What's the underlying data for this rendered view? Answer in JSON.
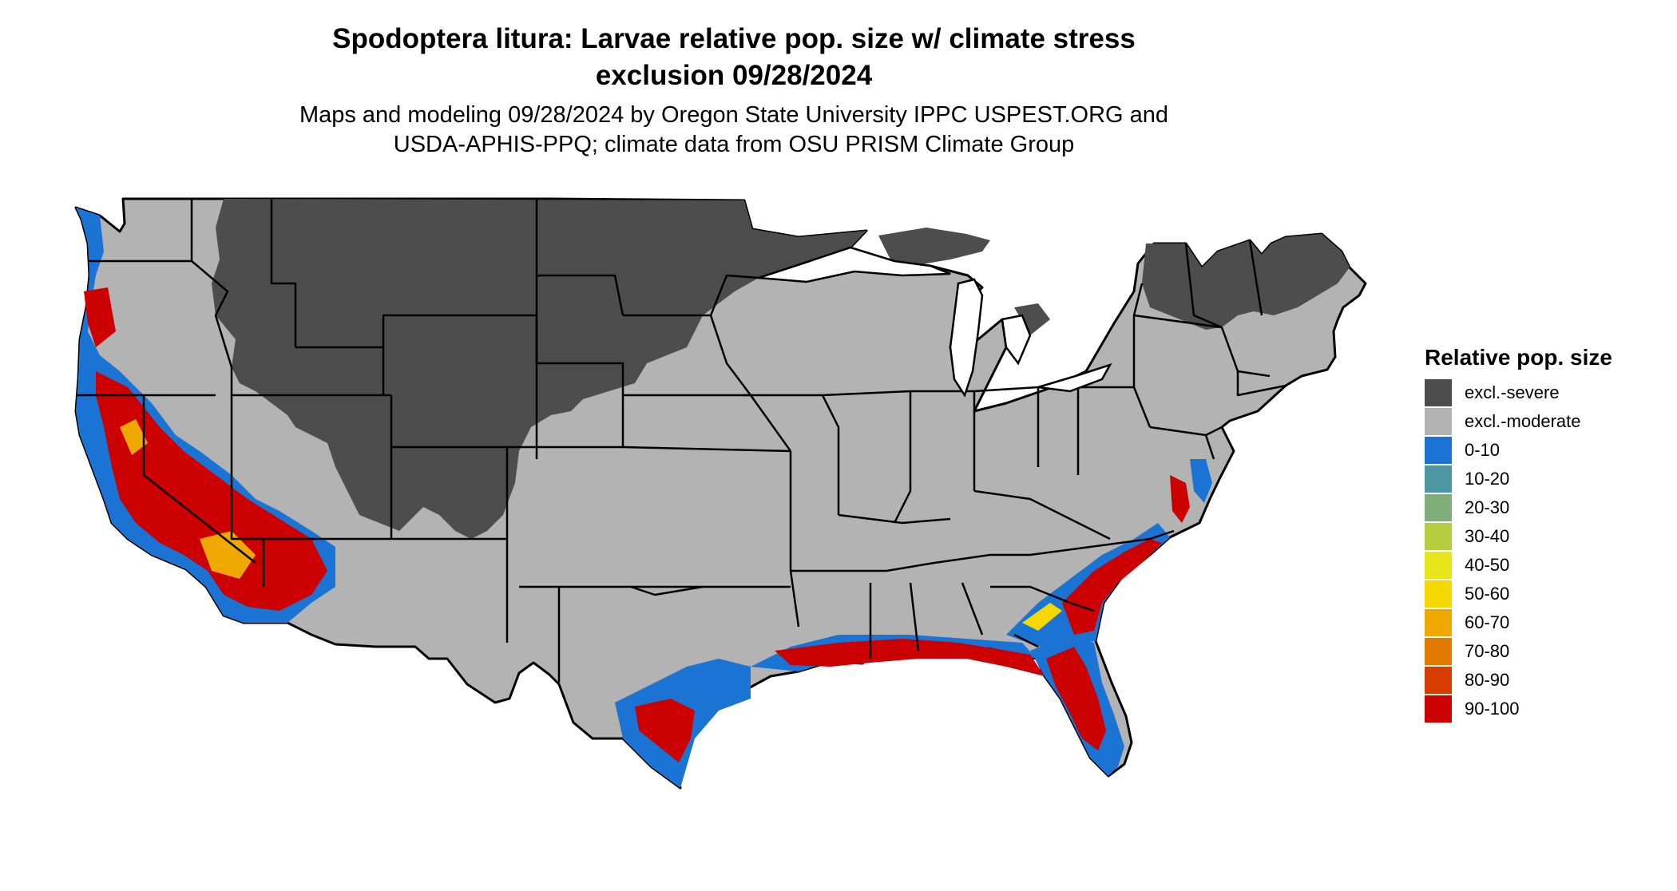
{
  "title_line1": "Spodoptera litura: Larvae relative pop. size w/ climate stress",
  "title_line2": "exclusion 09/28/2024",
  "subtitle_line1": "Maps and modeling 09/28/2024 by Oregon State University IPPC USPEST.ORG and",
  "subtitle_line2": "USDA-APHIS-PPQ; climate data from OSU PRISM Climate Group",
  "legend": {
    "title": "Relative pop. size",
    "items": [
      {
        "label": "excl.-severe",
        "color": "#4d4d4d"
      },
      {
        "label": "excl.-moderate",
        "color": "#b3b3b3"
      },
      {
        "label": "0-10",
        "color": "#1b74d3"
      },
      {
        "label": "10-20",
        "color": "#4d97a3"
      },
      {
        "label": "20-30",
        "color": "#7fae7a"
      },
      {
        "label": "30-40",
        "color": "#b5cd3e"
      },
      {
        "label": "40-50",
        "color": "#e6e61a"
      },
      {
        "label": "50-60",
        "color": "#f5d800"
      },
      {
        "label": "60-70",
        "color": "#eea800"
      },
      {
        "label": "70-80",
        "color": "#e27a00"
      },
      {
        "label": "80-90",
        "color": "#d83c00"
      },
      {
        "label": "90-100",
        "color": "#cc0000"
      }
    ]
  }
}
